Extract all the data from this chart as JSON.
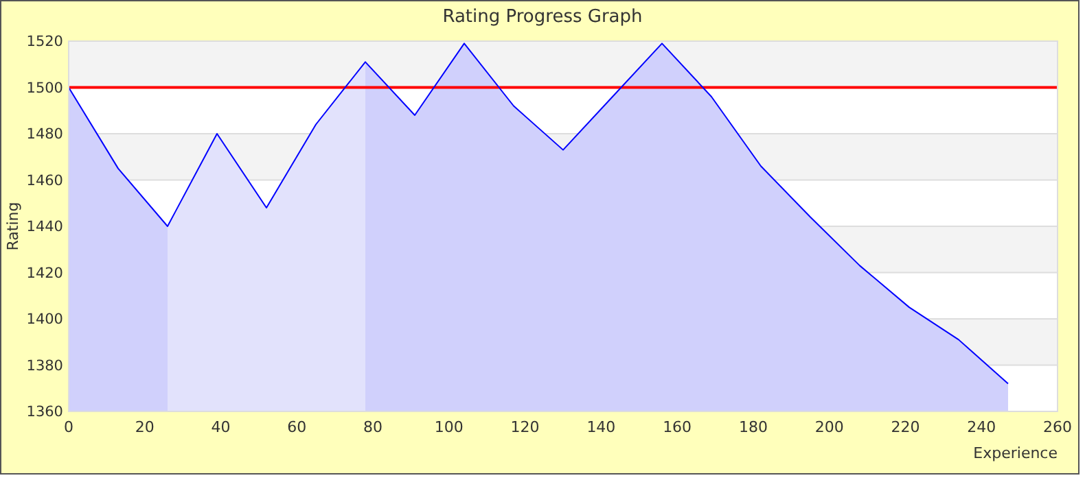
{
  "chart_data": {
    "type": "area",
    "title": "Rating Progress Graph",
    "xlabel": "Experience",
    "ylabel": "Rating",
    "xlim": [
      0,
      260
    ],
    "xticks": [
      0,
      20,
      40,
      60,
      80,
      100,
      120,
      140,
      160,
      180,
      200,
      220,
      240,
      260
    ],
    "ylim": [
      1360,
      1520
    ],
    "yticks": [
      1360,
      1380,
      1400,
      1420,
      1440,
      1460,
      1480,
      1500,
      1520
    ],
    "grid": "y",
    "series": [
      {
        "color": "#d0d0fc",
        "x": [
          0,
          13,
          26
        ],
        "values": [
          1500,
          1465,
          1440
        ]
      },
      {
        "color": "#e2e2fc",
        "x": [
          26,
          39,
          52,
          65,
          78
        ],
        "values": [
          1440,
          1480,
          1448,
          1484,
          1511
        ]
      },
      {
        "color": "#d0d0fc",
        "x": [
          78,
          91,
          104,
          117,
          130,
          143,
          156,
          169,
          182,
          195,
          208,
          221,
          234,
          247
        ],
        "values": [
          1511,
          1488,
          1519,
          1492,
          1473,
          1496,
          1519,
          1496,
          1466,
          1444,
          1423,
          1405,
          1391,
          1372
        ]
      },
      {
        "type": "line",
        "color": "#0000ff",
        "x": [
          0,
          13,
          26,
          39,
          52,
          65,
          78,
          91,
          104,
          117,
          130,
          143,
          156,
          169,
          182,
          195,
          208,
          221,
          234,
          247
        ],
        "values": [
          1500,
          1465,
          1440,
          1480,
          1448,
          1484,
          1511,
          1488,
          1519,
          1492,
          1473,
          1496,
          1519,
          1496,
          1466,
          1444,
          1423,
          1405,
          1391,
          1372
        ]
      }
    ],
    "ref_lines": [
      {
        "axis": "y",
        "value": 1500,
        "color": "#ff0000"
      }
    ]
  }
}
